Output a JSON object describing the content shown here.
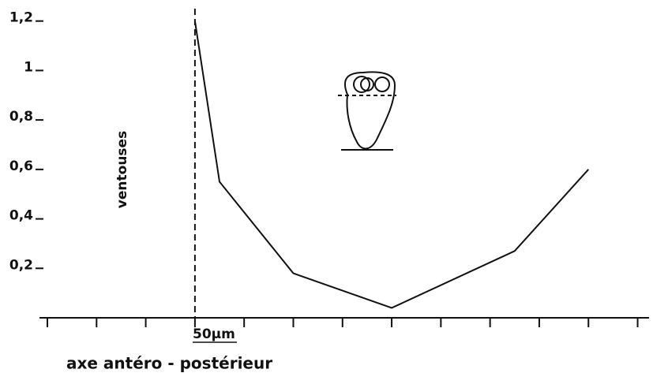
{
  "chart_data": {
    "type": "line",
    "y_label": "ventouses",
    "x_label": "axe antéro - postérieur",
    "annotation": "50µm",
    "x": [
      3,
      3.5,
      5,
      7,
      9.5,
      11
    ],
    "series": [
      {
        "color": "#111111",
        "values": [
          1.2,
          0.55,
          0.18,
          0.04,
          0.27,
          0.6
        ]
      }
    ],
    "xlim": [
      0,
      12.2
    ],
    "xticks": [
      0,
      1,
      2,
      3,
      4,
      5,
      6,
      7,
      8,
      9,
      10,
      11,
      12
    ],
    "ylim": [
      0,
      1.25
    ],
    "yticks": [
      {
        "value": 0.2,
        "label": "0,2"
      },
      {
        "value": 0.4,
        "label": "0,4"
      },
      {
        "value": 0.6,
        "label": "0,6"
      },
      {
        "value": 0.8,
        "label": "0,8"
      },
      1,
      {
        "value": 1.2,
        "label": "1,2"
      }
    ],
    "vline": 3
  }
}
